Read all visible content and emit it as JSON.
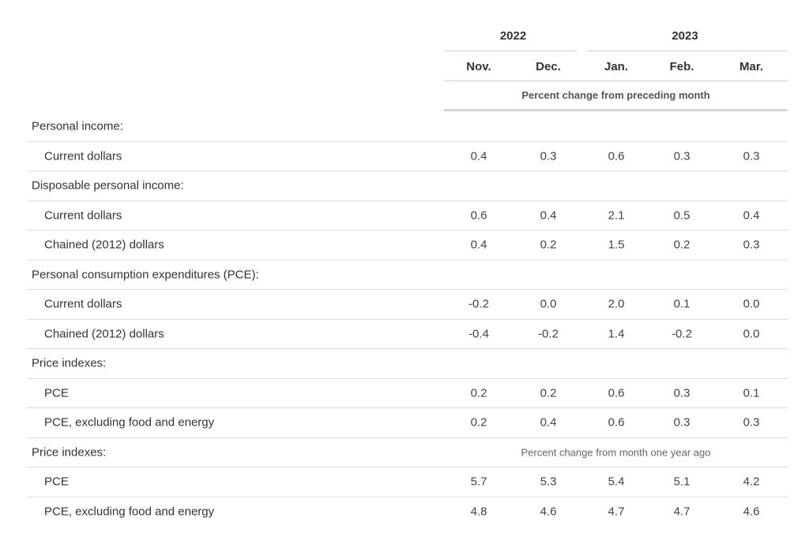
{
  "header": {
    "years": [
      {
        "label": "2022"
      },
      {
        "label": "2023"
      }
    ],
    "months": [
      "Nov.",
      "Dec.",
      "Jan.",
      "Feb.",
      "Mar."
    ],
    "unit_label": "Percent change from preceding month"
  },
  "rows": [
    {
      "type": "section",
      "label": "Personal income:"
    },
    {
      "type": "sub",
      "label": "Current dollars",
      "values": [
        "0.4",
        "0.3",
        "0.6",
        "0.3",
        "0.3"
      ]
    },
    {
      "type": "section",
      "label": "Disposable personal income:"
    },
    {
      "type": "sub",
      "label": "Current dollars",
      "values": [
        "0.6",
        "0.4",
        "2.1",
        "0.5",
        "0.4"
      ]
    },
    {
      "type": "sub",
      "label": "Chained (2012) dollars",
      "values": [
        "0.4",
        "0.2",
        "1.5",
        "0.2",
        "0.3"
      ]
    },
    {
      "type": "section",
      "label": "Personal consumption expenditures (PCE):"
    },
    {
      "type": "sub",
      "label": "Current dollars",
      "values": [
        "-0.2",
        "0.0",
        "2.0",
        "0.1",
        "0.0"
      ]
    },
    {
      "type": "sub",
      "label": "Chained (2012) dollars",
      "values": [
        "-0.4",
        "-0.2",
        "1.4",
        "-0.2",
        "0.0"
      ]
    },
    {
      "type": "section",
      "label": "Price indexes:"
    },
    {
      "type": "sub",
      "label": "PCE",
      "values": [
        "0.2",
        "0.2",
        "0.6",
        "0.3",
        "0.1"
      ]
    },
    {
      "type": "sub",
      "label": "PCE, excluding food and energy",
      "values": [
        "0.2",
        "0.4",
        "0.6",
        "0.3",
        "0.3"
      ]
    },
    {
      "type": "section",
      "label": "Price indexes:",
      "note": "Percent change from month one year ago"
    },
    {
      "type": "sub",
      "label": "PCE",
      "values": [
        "5.7",
        "5.3",
        "5.4",
        "5.1",
        "4.2"
      ]
    },
    {
      "type": "sub",
      "label": "PCE, excluding food and energy",
      "values": [
        "4.8",
        "4.6",
        "4.7",
        "4.7",
        "4.6"
      ]
    }
  ]
}
